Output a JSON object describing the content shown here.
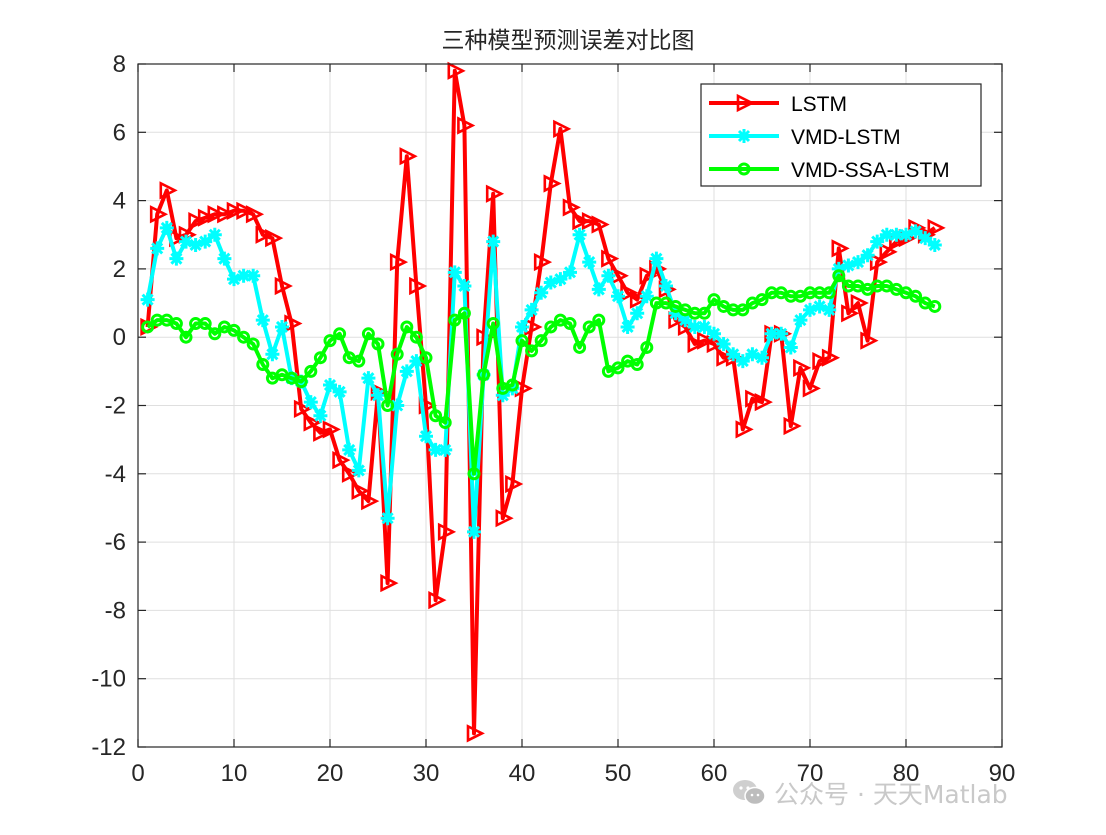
{
  "chart_data": {
    "type": "line",
    "title": "三种模型预测误差对比图",
    "xlabel": "",
    "ylabel": "",
    "xlim": [
      0,
      90
    ],
    "ylim": [
      -12,
      8
    ],
    "xticks": [
      0,
      10,
      20,
      30,
      40,
      50,
      60,
      70,
      80,
      90
    ],
    "yticks": [
      -12,
      -10,
      -8,
      -6,
      -4,
      -2,
      0,
      2,
      4,
      6,
      8
    ],
    "grid": true,
    "legend_position": "top-right",
    "x": [
      1,
      2,
      3,
      4,
      5,
      6,
      7,
      8,
      9,
      10,
      11,
      12,
      13,
      14,
      15,
      16,
      17,
      18,
      19,
      20,
      21,
      22,
      23,
      24,
      25,
      26,
      27,
      28,
      29,
      30,
      31,
      32,
      33,
      34,
      35,
      36,
      37,
      38,
      39,
      40,
      41,
      42,
      43,
      44,
      45,
      46,
      47,
      48,
      49,
      50,
      51,
      52,
      53,
      54,
      55,
      56,
      57,
      58,
      59,
      60,
      61,
      62,
      63,
      64,
      65,
      66,
      67,
      68,
      69,
      70,
      71,
      72,
      73,
      74,
      75,
      76,
      77,
      78,
      79,
      80,
      81,
      82,
      83
    ],
    "series": [
      {
        "name": "LSTM",
        "color": "#ff0000",
        "marker": "triangle-right",
        "values": [
          0.3,
          3.6,
          4.3,
          2.9,
          3.0,
          3.4,
          3.5,
          3.6,
          3.6,
          3.7,
          3.7,
          3.6,
          3.0,
          2.9,
          1.5,
          0.4,
          -2.1,
          -2.5,
          -2.8,
          -2.7,
          -3.6,
          -4.0,
          -4.5,
          -4.8,
          -1.6,
          -7.2,
          2.2,
          5.3,
          1.5,
          -2.0,
          -7.7,
          -5.7,
          7.8,
          6.2,
          -11.6,
          0.0,
          4.2,
          -5.3,
          -4.3,
          -1.5,
          0.3,
          2.2,
          4.5,
          6.1,
          3.8,
          3.4,
          3.4,
          3.3,
          2.3,
          1.8,
          1.3,
          1.1,
          1.8,
          2.0,
          1.4,
          0.5,
          0.3,
          -0.2,
          -0.1,
          -0.2,
          -0.6,
          -0.6,
          -2.7,
          -1.8,
          -1.9,
          0.1,
          0.1,
          -2.6,
          -0.9,
          -1.5,
          -0.7,
          -0.6,
          2.6,
          0.7,
          1.0,
          -0.1,
          2.2,
          2.5,
          2.8,
          2.9,
          3.2,
          3.0,
          3.2
        ]
      },
      {
        "name": "VMD-LSTM",
        "color": "#00ffff",
        "marker": "asterisk",
        "values": [
          1.1,
          2.6,
          3.2,
          2.3,
          2.8,
          2.7,
          2.8,
          3.0,
          2.3,
          1.7,
          1.8,
          1.8,
          0.5,
          -0.5,
          0.3,
          -1.2,
          -1.3,
          -1.9,
          -2.3,
          -1.4,
          -1.6,
          -3.3,
          -3.9,
          -1.2,
          -1.7,
          -5.3,
          -2.0,
          -1.0,
          -0.7,
          -2.9,
          -3.3,
          -3.3,
          1.9,
          1.5,
          -5.7,
          -1.1,
          2.8,
          -1.7,
          -1.5,
          0.3,
          0.8,
          1.3,
          1.6,
          1.7,
          1.9,
          3.0,
          2.2,
          1.4,
          1.8,
          1.2,
          0.3,
          0.7,
          1.2,
          2.3,
          1.5,
          0.7,
          0.5,
          0.3,
          0.3,
          0.1,
          -0.2,
          -0.5,
          -0.7,
          -0.5,
          -0.6,
          0.1,
          0.1,
          -0.3,
          0.5,
          0.8,
          0.9,
          0.8,
          2.0,
          2.1,
          2.2,
          2.4,
          2.8,
          3.0,
          3.0,
          3.0,
          3.1,
          2.9,
          2.7
        ]
      },
      {
        "name": "VMD-SSA-LSTM",
        "color": "#00ff00",
        "marker": "circle",
        "values": [
          0.3,
          0.5,
          0.5,
          0.4,
          0.0,
          0.4,
          0.4,
          0.1,
          0.3,
          0.2,
          0.0,
          -0.2,
          -0.8,
          -1.2,
          -1.1,
          -1.2,
          -1.3,
          -1.0,
          -0.6,
          -0.1,
          0.1,
          -0.6,
          -0.7,
          0.1,
          -0.2,
          -2.0,
          -0.5,
          0.3,
          0.0,
          -0.6,
          -2.3,
          -2.5,
          0.5,
          0.7,
          -4.0,
          -1.1,
          0.4,
          -1.5,
          -1.4,
          -0.1,
          -0.4,
          -0.1,
          0.3,
          0.5,
          0.4,
          -0.3,
          0.3,
          0.5,
          -1.0,
          -0.9,
          -0.7,
          -0.8,
          -0.3,
          1.0,
          1.0,
          0.9,
          0.8,
          0.7,
          0.7,
          1.1,
          0.9,
          0.8,
          0.8,
          1.0,
          1.1,
          1.3,
          1.3,
          1.2,
          1.2,
          1.3,
          1.3,
          1.3,
          1.8,
          1.5,
          1.5,
          1.4,
          1.5,
          1.5,
          1.4,
          1.3,
          1.2,
          1.0,
          0.9
        ]
      }
    ]
  },
  "watermark": {
    "text": "公众号 · 天天Matlab",
    "icon": "wechat-icon",
    "color": "#c9c9c9"
  }
}
